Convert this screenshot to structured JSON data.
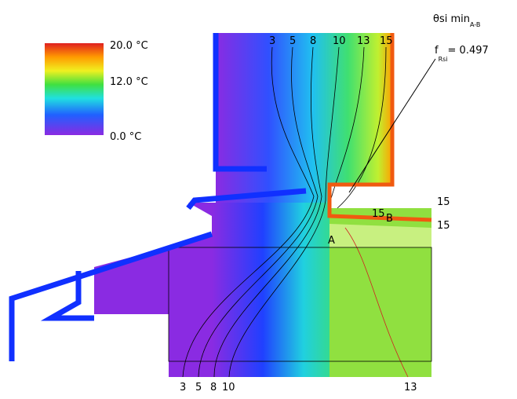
{
  "legend": {
    "labels": [
      "20.0 °C",
      "12.0 °C",
      "0.0 °C"
    ]
  },
  "isotherms": {
    "top": [
      "3",
      "5",
      "8",
      "10",
      "13",
      "15"
    ],
    "bottom": [
      "3",
      "5",
      "8",
      "10",
      "13"
    ],
    "right": [
      "15",
      "15"
    ],
    "near_b": "15"
  },
  "points": {
    "a": "A",
    "b": "B"
  },
  "annotation": {
    "theta": "θsi min",
    "theta_sub": "A-B",
    "f": "f",
    "f_sub": "Rsi",
    "f_value": "= 0.497"
  }
}
